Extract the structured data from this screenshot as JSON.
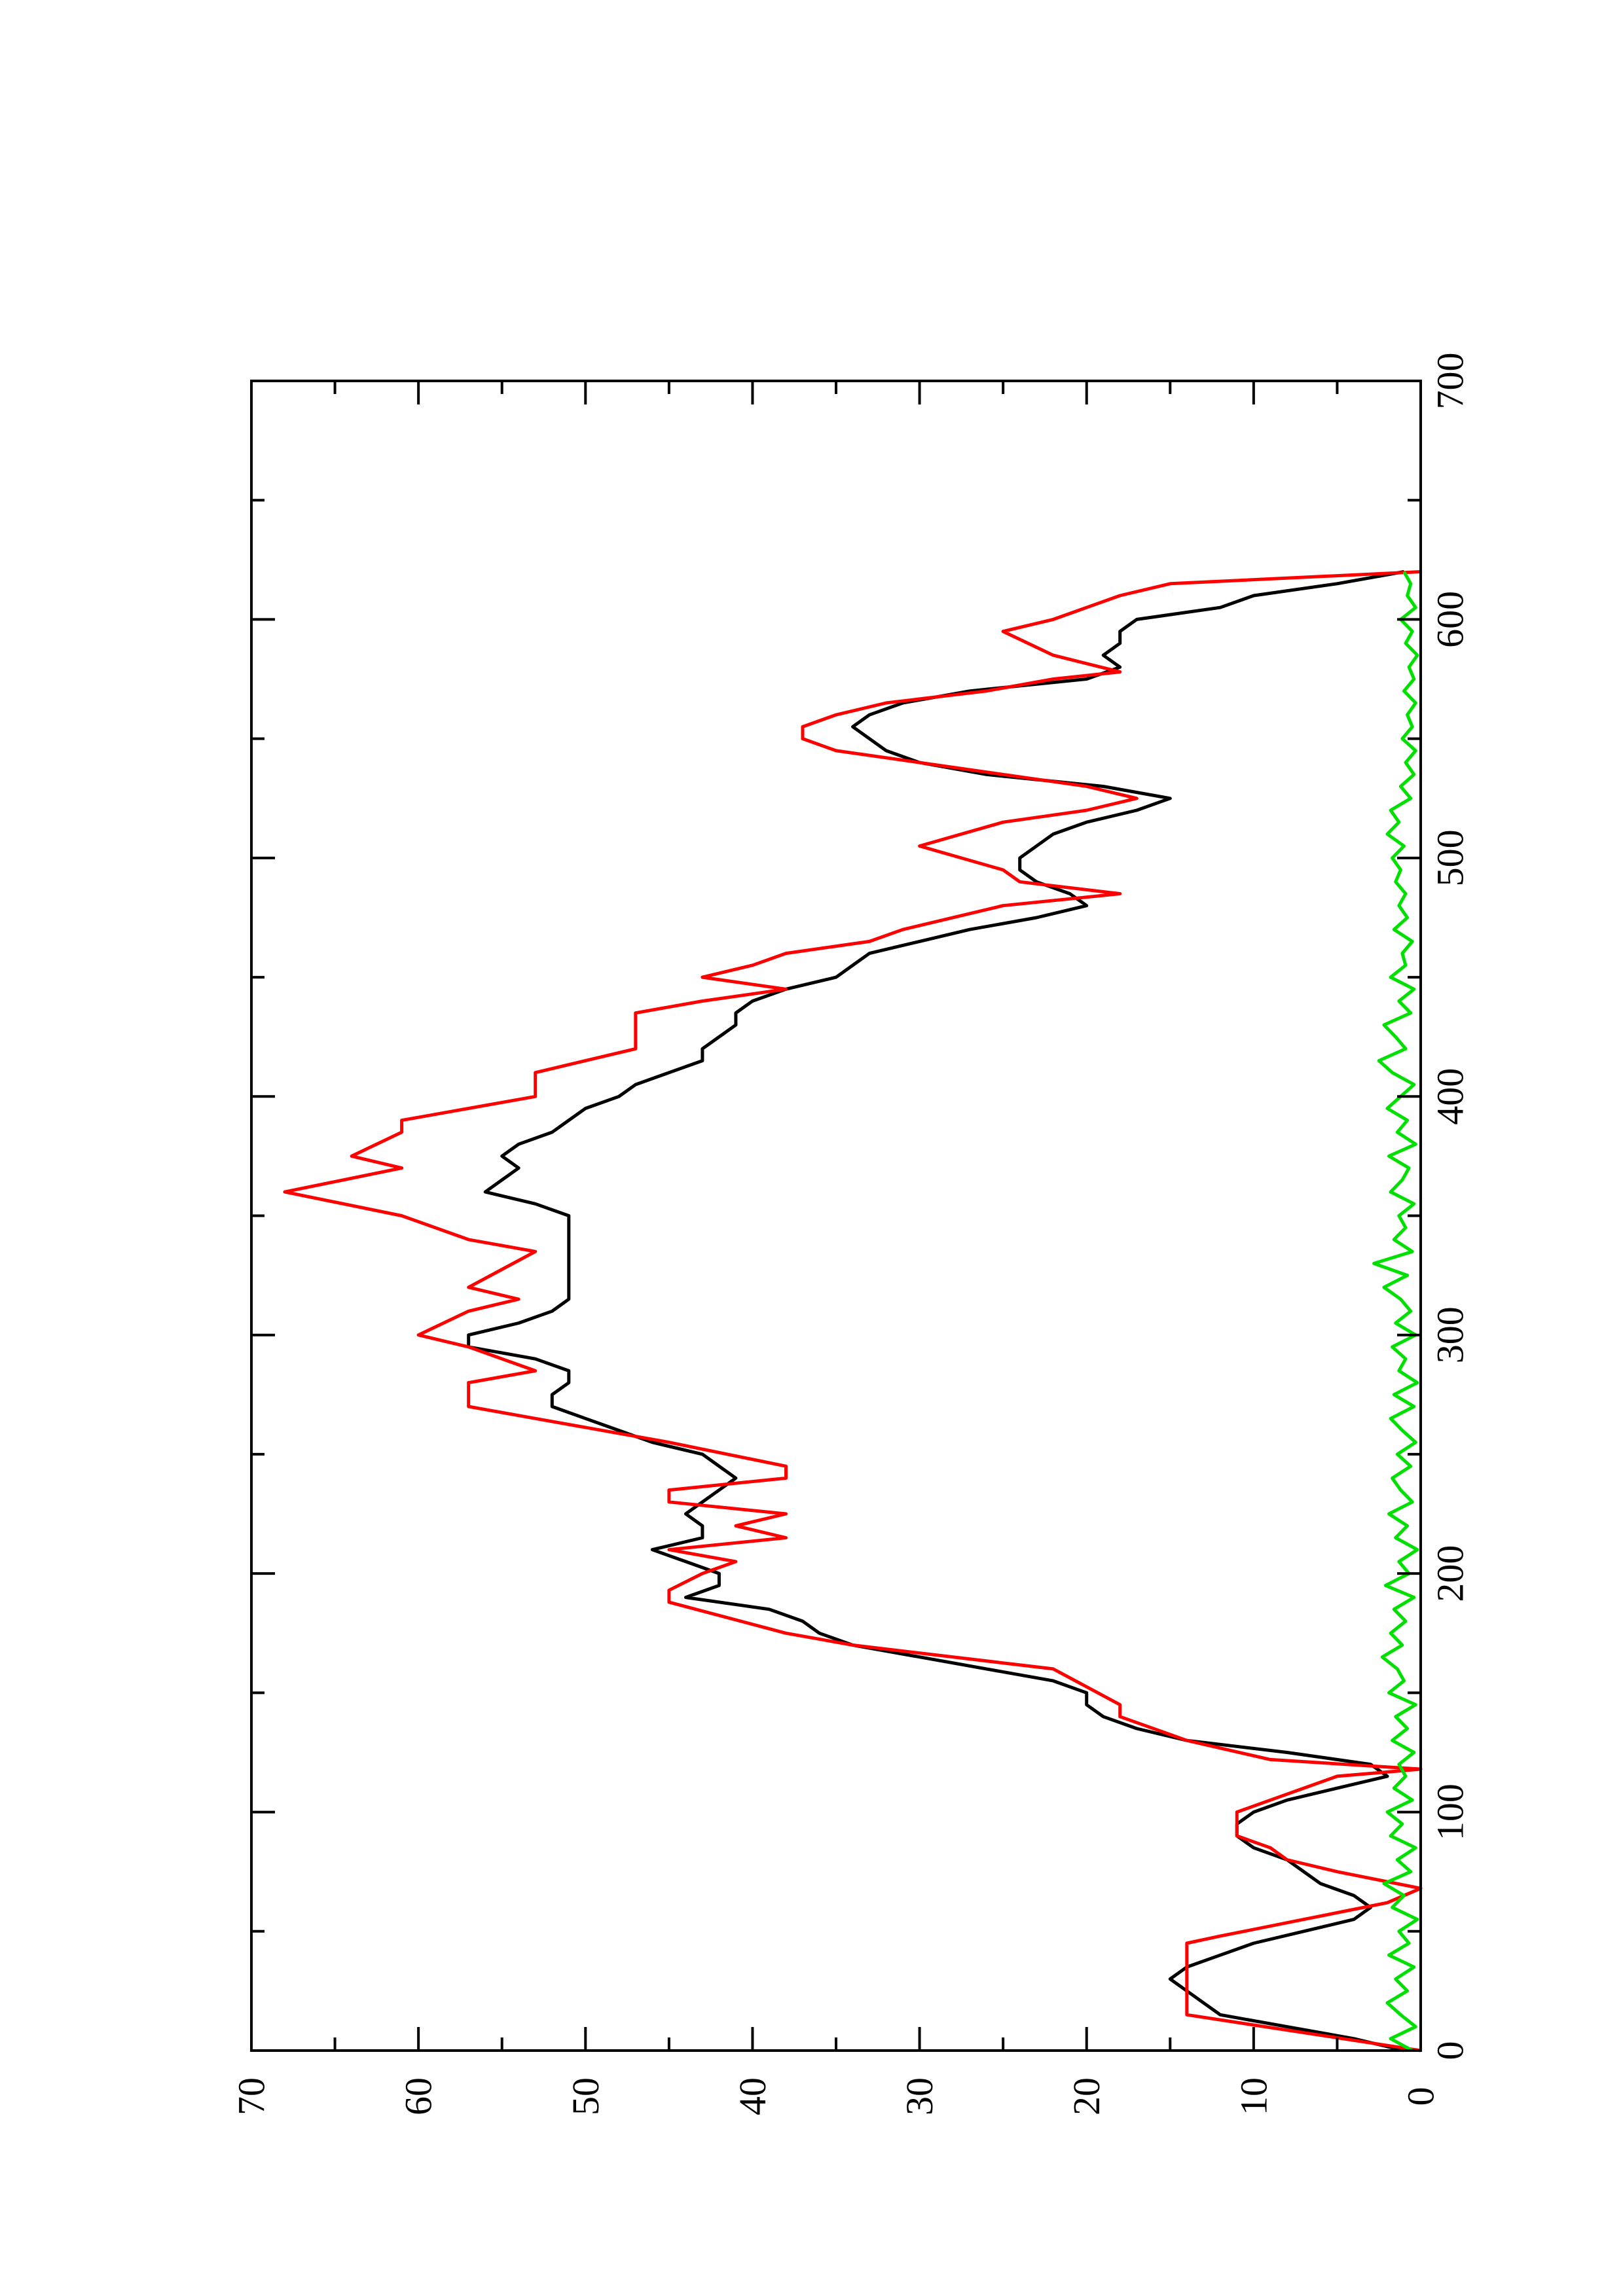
{
  "chart_data": {
    "type": "line",
    "orientation": "rotated-90-ccw",
    "title": "",
    "xlabel": "",
    "ylabel": "",
    "xlim": [
      0,
      700
    ],
    "ylim": [
      0,
      70
    ],
    "x_ticks": [
      0,
      100,
      200,
      300,
      400,
      500,
      600,
      700
    ],
    "x_tick_labels": [
      "0",
      "100",
      "200",
      "300",
      "400",
      "500",
      "600",
      "700"
    ],
    "y_ticks": [
      0,
      10,
      20,
      30,
      40,
      50,
      60,
      70
    ],
    "y_tick_labels": [
      "0",
      "10",
      "20",
      "30",
      "40",
      "50",
      "60",
      "70"
    ],
    "grid": false,
    "legend": "none",
    "series": [
      {
        "color": "#000000",
        "x": [
          0,
          5,
          10,
          15,
          20,
          25,
          30,
          35,
          40,
          45,
          50,
          55,
          60,
          65,
          70,
          75,
          80,
          85,
          90,
          95,
          100,
          105,
          110,
          115,
          120,
          125,
          130,
          135,
          140,
          145,
          150,
          155,
          160,
          165,
          170,
          175,
          180,
          185,
          190,
          195,
          200,
          205,
          210,
          215,
          220,
          225,
          230,
          235,
          240,
          245,
          250,
          255,
          260,
          265,
          270,
          275,
          280,
          285,
          290,
          295,
          300,
          305,
          310,
          315,
          320,
          325,
          330,
          335,
          340,
          345,
          350,
          355,
          360,
          365,
          370,
          375,
          380,
          385,
          390,
          395,
          400,
          405,
          410,
          415,
          420,
          425,
          430,
          435,
          440,
          445,
          450,
          455,
          460,
          465,
          470,
          475,
          480,
          485,
          490,
          495,
          500,
          505,
          510,
          515,
          520,
          525,
          530,
          535,
          540,
          545,
          550,
          555,
          560,
          565,
          570,
          575,
          580,
          585,
          590,
          595,
          600,
          605,
          610,
          615,
          620
        ],
        "y": [
          1,
          4,
          8,
          12,
          13,
          14,
          15,
          14,
          12,
          10,
          7,
          4,
          3,
          4,
          6,
          7,
          8,
          10,
          11,
          11,
          10,
          8,
          5,
          2,
          3,
          8,
          14,
          17,
          19,
          20,
          20,
          22,
          26,
          30,
          34,
          36,
          37,
          39,
          44,
          42,
          42,
          44,
          46,
          43,
          43,
          44,
          43,
          42,
          41,
          42,
          43,
          46,
          48,
          50,
          52,
          52,
          51,
          51,
          53,
          57,
          57,
          54,
          52,
          51,
          51,
          51,
          51,
          51,
          51,
          51,
          51,
          53,
          56,
          55,
          54,
          55,
          54,
          52,
          51,
          50,
          48,
          47,
          45,
          43,
          43,
          42,
          41,
          41,
          40,
          38,
          35,
          34,
          33,
          30,
          27,
          23,
          20,
          21,
          23,
          24,
          24,
          23,
          22,
          20,
          17,
          15,
          19,
          26,
          30,
          32,
          33,
          34,
          33,
          31,
          27,
          20,
          18,
          19,
          18,
          18,
          17,
          12,
          10,
          5,
          1
        ]
      },
      {
        "color": "#ff0000",
        "x": [
          0,
          15,
          45,
          48,
          55,
          62,
          68,
          75,
          80,
          85,
          90,
          95,
          100,
          105,
          110,
          115,
          118,
          122,
          130,
          140,
          145,
          160,
          170,
          175,
          188,
          193,
          200,
          205,
          210,
          215,
          220,
          225,
          230,
          235,
          240,
          245,
          255,
          265,
          270,
          280,
          285,
          295,
          300,
          310,
          315,
          320,
          335,
          340,
          350,
          360,
          370,
          375,
          385,
          390,
          400,
          410,
          420,
          435,
          440,
          445,
          450,
          455,
          460,
          465,
          470,
          480,
          485,
          490,
          495,
          505,
          515,
          520,
          525,
          530,
          540,
          545,
          550,
          555,
          560,
          565,
          570,
          575,
          578,
          585,
          595,
          600,
          605,
          610,
          615,
          620
        ],
        "y": [
          0,
          14,
          14,
          12,
          7,
          2,
          0,
          5,
          8,
          9,
          11,
          11,
          11,
          9,
          7,
          5,
          0,
          9,
          14,
          18,
          18,
          22,
          34,
          38,
          45,
          45,
          43,
          41,
          45,
          38,
          41,
          38,
          45,
          45,
          38,
          38,
          45,
          53,
          57,
          57,
          53,
          57,
          60,
          57,
          54,
          57,
          53,
          57,
          61,
          68,
          61,
          64,
          61,
          61,
          53,
          53,
          47,
          47,
          43,
          38,
          43,
          40,
          38,
          33,
          31,
          25,
          18,
          24,
          25,
          30,
          25,
          20,
          17,
          20,
          30,
          35,
          37,
          37,
          35,
          32,
          26,
          22,
          18,
          22,
          25,
          22,
          20,
          18,
          15,
          0
        ]
      },
      {
        "color": "#00e000",
        "x": [
          0,
          5,
          10,
          15,
          20,
          25,
          30,
          35,
          40,
          45,
          50,
          55,
          60,
          65,
          70,
          75,
          80,
          85,
          90,
          95,
          100,
          105,
          110,
          115,
          120,
          125,
          130,
          135,
          140,
          145,
          150,
          155,
          160,
          165,
          170,
          175,
          180,
          185,
          190,
          195,
          200,
          205,
          210,
          215,
          220,
          225,
          230,
          235,
          240,
          245,
          250,
          255,
          260,
          265,
          270,
          275,
          280,
          285,
          290,
          295,
          300,
          305,
          310,
          315,
          320,
          325,
          330,
          335,
          340,
          345,
          350,
          355,
          360,
          365,
          370,
          375,
          380,
          385,
          390,
          395,
          400,
          405,
          410,
          415,
          420,
          425,
          430,
          435,
          440,
          445,
          450,
          455,
          460,
          465,
          470,
          475,
          480,
          485,
          490,
          495,
          500,
          505,
          510,
          515,
          520,
          525,
          530,
          535,
          540,
          545,
          550,
          555,
          560,
          565,
          570,
          575,
          580,
          585,
          590,
          595,
          600,
          605,
          610,
          615,
          620
        ],
        "y": [
          0.5,
          1.8,
          0.3,
          1.2,
          2.0,
          0.8,
          1.5,
          0.4,
          1.9,
          0.7,
          1.3,
          0.2,
          1.7,
          1.0,
          2.2,
          0.6,
          1.4,
          0.3,
          1.8,
          1.1,
          2.0,
          0.5,
          1.6,
          0.9,
          1.3,
          0.4,
          1.7,
          0.8,
          1.5,
          0.3,
          1.9,
          1.0,
          1.4,
          2.3,
          1.1,
          1.8,
          0.9,
          1.6,
          0.4,
          2.1,
          0.7,
          1.3,
          0.2,
          1.5,
          0.8,
          1.9,
          0.5,
          1.2,
          1.7,
          0.6,
          1.4,
          0.3,
          1.1,
          1.8,
          0.4,
          1.6,
          0.2,
          1.3,
          0.9,
          1.7,
          0.3,
          1.5,
          0.6,
          1.2,
          2.2,
          0.8,
          2.8,
          0.5,
          1.6,
          0.9,
          1.3,
          0.4,
          1.8,
          1.1,
          0.7,
          1.9,
          0.3,
          1.4,
          0.8,
          2.0,
          1.2,
          0.4,
          1.7,
          2.5,
          0.9,
          1.5,
          2.2,
          0.6,
          1.3,
          0.4,
          1.8,
          0.9,
          1.1,
          0.5,
          1.6,
          0.8,
          1.3,
          0.9,
          1.5,
          1.2,
          1.7,
          1.0,
          2.0,
          1.3,
          1.8,
          0.6,
          1.2,
          0.4,
          0.9,
          0.3,
          1.1,
          0.5,
          0.8,
          0.3,
          1.0,
          0.4,
          0.7,
          0.2,
          0.9,
          0.5,
          1.2,
          0.3,
          0.8,
          0.6,
          1.0
        ]
      }
    ]
  }
}
